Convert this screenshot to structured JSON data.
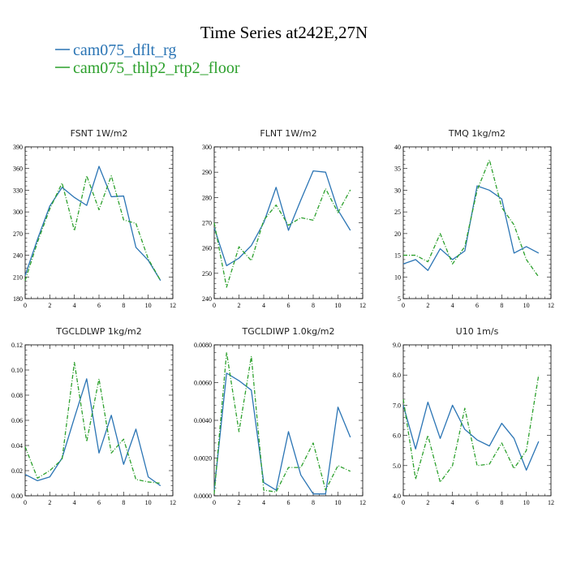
{
  "chart_data": {
    "type": "line",
    "title": "Time Series at242E,27N",
    "colors": {
      "cam075_dflt_rg": "#2a74b4",
      "cam075_thlp2_rtp2_floor": "#2ca02c"
    },
    "legend": [
      {
        "name": "cam075_dflt_rg",
        "color": "#2a74b4",
        "dash": false
      },
      {
        "name": "cam075_thlp2_rtp2_floor",
        "color": "#2ca02c",
        "dash": true
      }
    ],
    "panels": [
      {
        "title": "FSNT   1W/m2",
        "x": [
          0,
          1,
          2,
          3,
          4,
          5,
          6,
          7,
          8,
          9,
          10,
          11
        ],
        "xticks": [
          0,
          2,
          4,
          6,
          8,
          10,
          12
        ],
        "xlim": [
          0,
          12
        ],
        "ylim": [
          180,
          390
        ],
        "yticks": [
          180,
          210,
          240,
          270,
          300,
          330,
          360,
          390
        ],
        "ytick_labels": [
          "180",
          "210",
          "240",
          "270",
          "300",
          "330",
          "360",
          "390"
        ],
        "series": [
          {
            "name": "cam075_dflt_rg",
            "values": [
              212,
              262,
              308,
              334,
              320,
              309,
              363,
              321,
              322,
              251,
              233,
              205
            ]
          },
          {
            "name": "cam075_thlp2_rtp2_floor",
            "values": [
              205,
              258,
              304,
              340,
              274,
              350,
              303,
              350,
              289,
              284,
              235,
              205
            ]
          }
        ]
      },
      {
        "title": "FLNT   1W/m2",
        "x": [
          0,
          1,
          2,
          3,
          4,
          5,
          6,
          7,
          8,
          9,
          10,
          11
        ],
        "xticks": [
          0,
          2,
          4,
          6,
          8,
          10,
          12
        ],
        "xlim": [
          0,
          12
        ],
        "ylim": [
          240,
          300
        ],
        "yticks": [
          240,
          250,
          260,
          270,
          280,
          290,
          300
        ],
        "ytick_labels": [
          "240",
          "250",
          "260",
          "270",
          "280",
          "290",
          "300"
        ],
        "series": [
          {
            "name": "cam075_dflt_rg",
            "values": [
              268,
              253,
              256,
              261,
              270,
              284,
              267,
              279,
              290.5,
              290,
              275,
              267
            ]
          },
          {
            "name": "cam075_thlp2_rtp2_floor",
            "values": [
              270,
              244.5,
              260.5,
              255,
              271,
              277,
              269,
              272,
              271,
              283.5,
              274,
              283
            ]
          }
        ]
      },
      {
        "title": "TMQ   1kg/m2",
        "x": [
          0,
          1,
          2,
          3,
          4,
          5,
          6,
          7,
          8,
          9,
          10,
          11
        ],
        "xticks": [
          0,
          2,
          4,
          6,
          8,
          10,
          12
        ],
        "xlim": [
          0,
          12
        ],
        "ylim": [
          5,
          40
        ],
        "yticks": [
          5,
          10,
          15,
          20,
          25,
          30,
          35,
          40
        ],
        "ytick_labels": [
          "5",
          "10",
          "15",
          "20",
          "25",
          "30",
          "35",
          "40"
        ],
        "series": [
          {
            "name": "cam075_dflt_rg",
            "values": [
              13,
              14,
              11.5,
              16.5,
              14,
              16,
              31,
              30,
              28,
              15.5,
              17,
              15.5
            ]
          },
          {
            "name": "cam075_thlp2_rtp2_floor",
            "values": [
              15,
              15,
              13.5,
              20,
              13,
              17,
              30,
              37,
              26,
              22,
              14,
              10
            ]
          }
        ]
      },
      {
        "title": "TGCLDLWP   1kg/m2",
        "x": [
          0,
          1,
          2,
          3,
          4,
          5,
          6,
          7,
          8,
          9,
          10,
          11
        ],
        "xticks": [
          0,
          2,
          4,
          6,
          8,
          10,
          12
        ],
        "xlim": [
          0,
          12
        ],
        "ylim": [
          0,
          0.12
        ],
        "yticks": [
          0,
          0.02,
          0.04,
          0.06,
          0.08,
          0.1,
          0.12
        ],
        "ytick_labels": [
          "0.00",
          "0.02",
          "0.04",
          "0.06",
          "0.08",
          "0.10",
          "0.12"
        ],
        "series": [
          {
            "name": "cam075_dflt_rg",
            "values": [
              0.017,
              0.012,
              0.015,
              0.03,
              0.062,
              0.093,
              0.034,
              0.064,
              0.025,
              0.053,
              0.015,
              0.008
            ]
          },
          {
            "name": "cam075_thlp2_rtp2_floor",
            "values": [
              0.039,
              0.014,
              0.02,
              0.029,
              0.106,
              0.043,
              0.093,
              0.034,
              0.045,
              0.013,
              0.011,
              0.01
            ]
          }
        ]
      },
      {
        "title": "TGCLDIWP   1.0kg/m2",
        "x": [
          0,
          1,
          2,
          3,
          4,
          5,
          6,
          7,
          8,
          9,
          10,
          11
        ],
        "xticks": [
          0,
          2,
          4,
          6,
          8,
          10,
          12
        ],
        "xlim": [
          0,
          12
        ],
        "ylim": [
          0,
          0.008
        ],
        "yticks": [
          0,
          0.002,
          0.004,
          0.006,
          0.008
        ],
        "ytick_labels": [
          "0.0000",
          "0.0020",
          "0.0040",
          "0.0060",
          "0.0080"
        ],
        "series": [
          {
            "name": "cam075_dflt_rg",
            "values": [
              0.0003,
              0.0065,
              0.0061,
              0.0056,
              0.0007,
              0.0003,
              0.0034,
              0.0011,
              0.0001,
              0.0001,
              0.0047,
              0.0031
            ]
          },
          {
            "name": "cam075_thlp2_rtp2_floor",
            "values": [
              0.0001,
              0.0076,
              0.0034,
              0.0074,
              0.0003,
              0.0002,
              0.0015,
              0.0015,
              0.0028,
              0.0003,
              0.0016,
              0.0013
            ]
          }
        ]
      },
      {
        "title": "U10   1m/s",
        "x": [
          0,
          1,
          2,
          3,
          4,
          5,
          6,
          7,
          8,
          9,
          10,
          11
        ],
        "xticks": [
          0,
          2,
          4,
          6,
          8,
          10,
          12
        ],
        "xlim": [
          0,
          12
        ],
        "ylim": [
          4,
          9
        ],
        "yticks": [
          4,
          5,
          6,
          7,
          8,
          9
        ],
        "ytick_labels": [
          "4.0",
          "5.0",
          "6.0",
          "7.0",
          "8.0",
          "9.0"
        ],
        "series": [
          {
            "name": "cam075_dflt_rg",
            "values": [
              7.0,
              5.55,
              7.1,
              5.9,
              7.0,
              6.2,
              5.85,
              5.65,
              6.4,
              5.9,
              4.85,
              5.8
            ]
          },
          {
            "name": "cam075_thlp2_rtp2_floor",
            "values": [
              7.2,
              4.55,
              6.0,
              4.45,
              5.0,
              6.9,
              5.0,
              5.05,
              5.75,
              4.9,
              5.5,
              8.0
            ]
          }
        ]
      }
    ]
  }
}
